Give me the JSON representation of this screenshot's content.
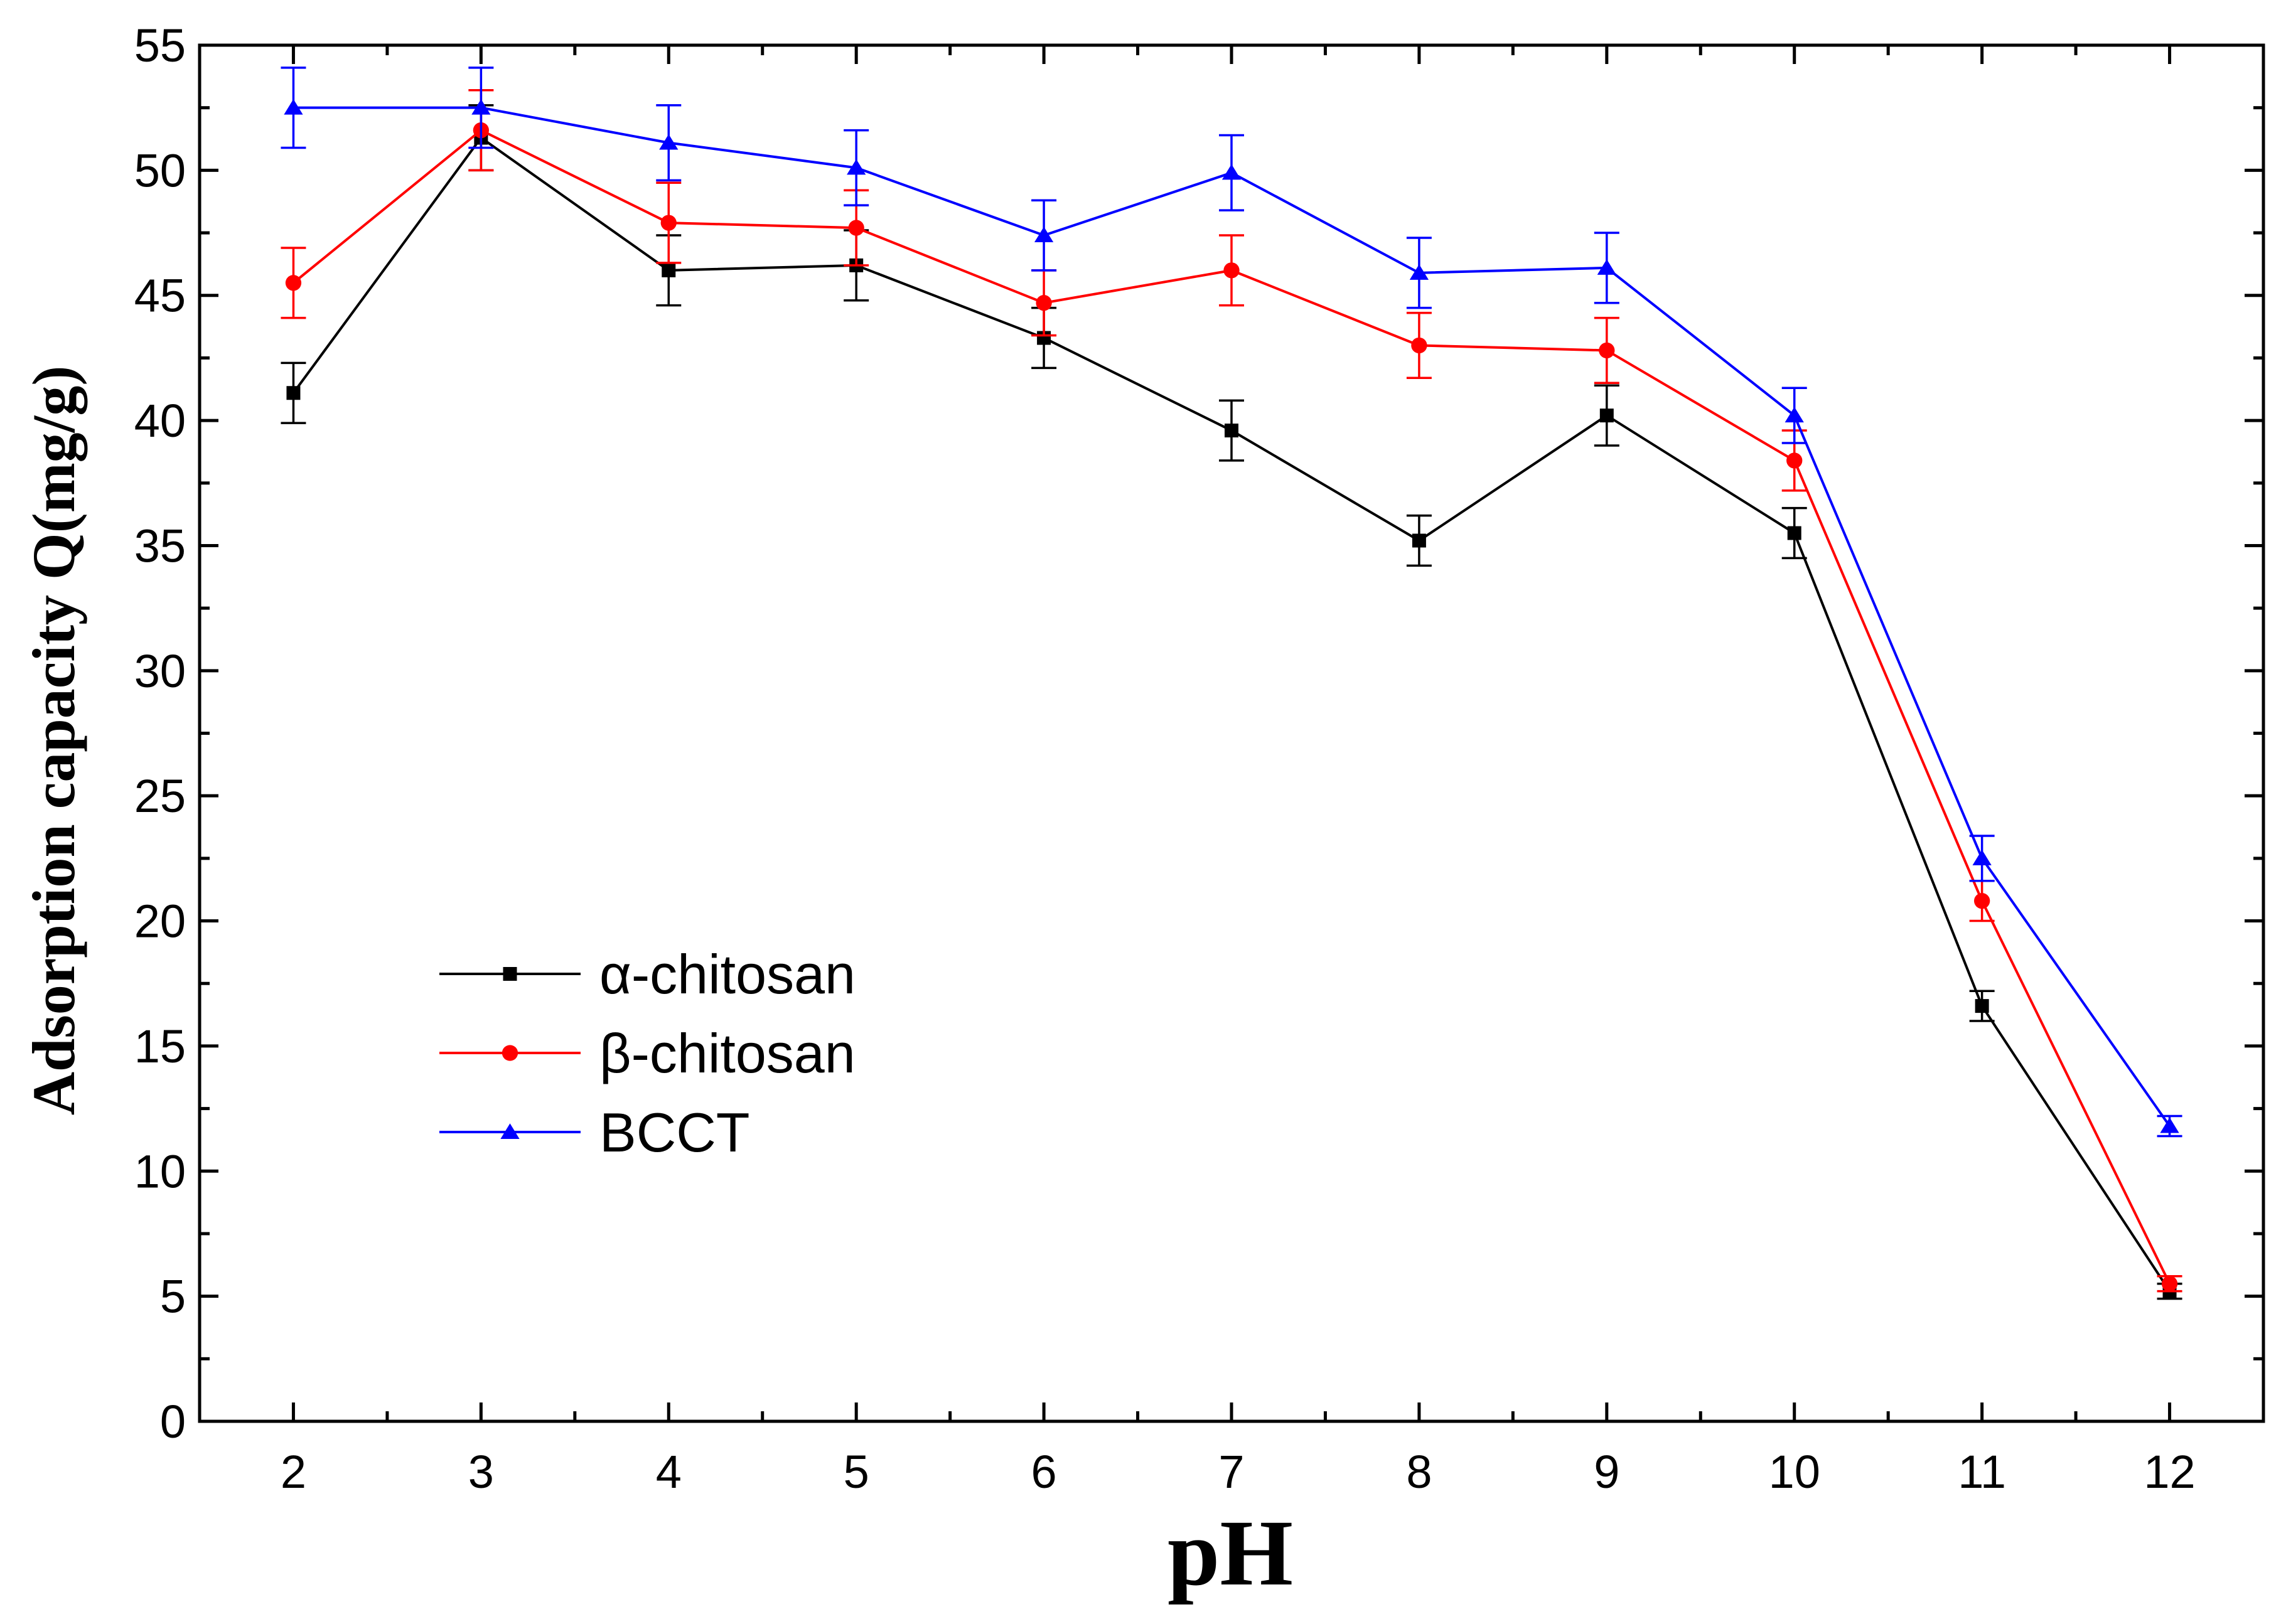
{
  "chart_data": {
    "type": "line",
    "title": "",
    "xlabel": "pH",
    "ylabel": "Adsorption capacity Q(mg/g)",
    "x": [
      2,
      3,
      4,
      5,
      6,
      7,
      8,
      9,
      10,
      11,
      12
    ],
    "xlim": [
      1.5,
      12.5
    ],
    "ylim": [
      0,
      55
    ],
    "xticks": [
      2,
      3,
      4,
      5,
      6,
      7,
      8,
      9,
      10,
      11,
      12
    ],
    "yticks": [
      0,
      5,
      10,
      15,
      20,
      25,
      30,
      35,
      40,
      45,
      50,
      55
    ],
    "x_tick_labels": [
      "2",
      "3",
      "4",
      "5",
      "6",
      "7",
      "8",
      "9",
      "10",
      "11",
      "12"
    ],
    "y_tick_labels": [
      "0",
      "5",
      "10",
      "15",
      "20",
      "25",
      "30",
      "35",
      "40",
      "45",
      "50",
      "55"
    ],
    "grid": false,
    "legend_position": "lower-left",
    "series": [
      {
        "name": "α-chitosan",
        "color": "#000000",
        "marker": "square",
        "values": [
          41.1,
          51.3,
          46.0,
          46.2,
          43.3,
          39.6,
          35.2,
          40.2,
          35.5,
          16.6,
          5.2
        ],
        "error": [
          1.2,
          1.3,
          1.4,
          1.4,
          1.2,
          1.2,
          1.0,
          1.2,
          1.0,
          0.6,
          0.3
        ]
      },
      {
        "name": "β-chitosan",
        "color": "#ff0000",
        "marker": "circle",
        "values": [
          45.5,
          51.6,
          47.9,
          47.7,
          44.7,
          46.0,
          43.0,
          42.8,
          38.4,
          20.8,
          5.5
        ],
        "error": [
          1.4,
          1.6,
          1.6,
          1.5,
          1.3,
          1.4,
          1.3,
          1.3,
          1.2,
          0.8,
          0.3
        ]
      },
      {
        "name": "BCCT",
        "color": "#0000ff",
        "marker": "triangle",
        "values": [
          52.5,
          52.5,
          51.1,
          50.1,
          47.4,
          49.9,
          45.9,
          46.1,
          40.2,
          22.5,
          11.8
        ],
        "error": [
          1.6,
          1.6,
          1.5,
          1.5,
          1.4,
          1.5,
          1.4,
          1.4,
          1.1,
          0.9,
          0.4
        ]
      }
    ]
  }
}
